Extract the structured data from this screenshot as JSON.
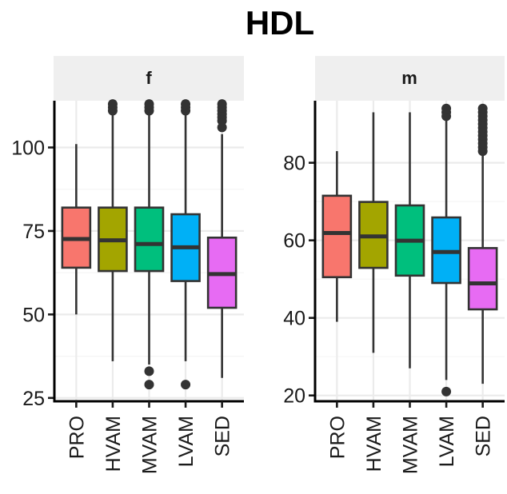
{
  "chart_data": {
    "type": "boxplot",
    "title": "HDL",
    "xlabel": "",
    "ylabel": "",
    "grid": true,
    "legend": "none",
    "categories": [
      "PRO",
      "HVAM",
      "MVAM",
      "LVAM",
      "SED"
    ],
    "colors": {
      "PRO": "#F8766D",
      "HVAM": "#A3A500",
      "MVAM": "#00BF7D",
      "LVAM": "#00B0F6",
      "SED": "#E76BF3"
    },
    "panels": [
      {
        "facet": "f",
        "ylim": [
          24,
          114
        ],
        "yticks": [
          25,
          50,
          75,
          100
        ],
        "boxes": [
          {
            "category": "PRO",
            "whisker_low": 50,
            "q1": 64,
            "median": 72.6,
            "q3": 82,
            "whisker_high": 101,
            "outliers": []
          },
          {
            "category": "HVAM",
            "whisker_low": 36,
            "q1": 63,
            "median": 72.2,
            "q3": 82,
            "whisker_high": 110,
            "outliers": [
              111,
              112,
              113
            ]
          },
          {
            "category": "MVAM",
            "whisker_low": 35,
            "q1": 63,
            "median": 71.1,
            "q3": 82,
            "whisker_high": 110,
            "outliers": [
              29,
              33,
              111,
              112,
              113
            ]
          },
          {
            "category": "LVAM",
            "whisker_low": 36,
            "q1": 60,
            "median": 70.1,
            "q3": 80,
            "whisker_high": 110,
            "outliers": [
              29,
              111,
              112,
              113
            ]
          },
          {
            "category": "SED",
            "whisker_low": 31,
            "q1": 52,
            "median": 62.1,
            "q3": 73,
            "whisker_high": 104,
            "outliers": [
              106,
              108,
              109,
              110,
              111,
              112,
              113
            ]
          }
        ]
      },
      {
        "facet": "m",
        "ylim": [
          18.5,
          96
        ],
        "yticks": [
          20,
          40,
          60,
          80
        ],
        "boxes": [
          {
            "category": "PRO",
            "whisker_low": 39,
            "q1": 50.5,
            "median": 61.9,
            "q3": 71.5,
            "whisker_high": 83,
            "outliers": []
          },
          {
            "category": "HVAM",
            "whisker_low": 31,
            "q1": 52.9,
            "median": 61.0,
            "q3": 69.9,
            "whisker_high": 93,
            "outliers": []
          },
          {
            "category": "MVAM",
            "whisker_low": 27,
            "q1": 50.9,
            "median": 59.9,
            "q3": 69.0,
            "whisker_high": 93,
            "outliers": []
          },
          {
            "category": "LVAM",
            "whisker_low": 24,
            "q1": 49.0,
            "median": 57.0,
            "q3": 65.9,
            "whisker_high": 91,
            "outliers": [
              21,
              92,
              93,
              94
            ]
          },
          {
            "category": "SED",
            "whisker_low": 23,
            "q1": 42.2,
            "median": 48.9,
            "q3": 58.0,
            "whisker_high": 82,
            "outliers": [
              83,
              84,
              85,
              86,
              87,
              88,
              89,
              90,
              91,
              92,
              93,
              94
            ]
          }
        ]
      }
    ]
  }
}
